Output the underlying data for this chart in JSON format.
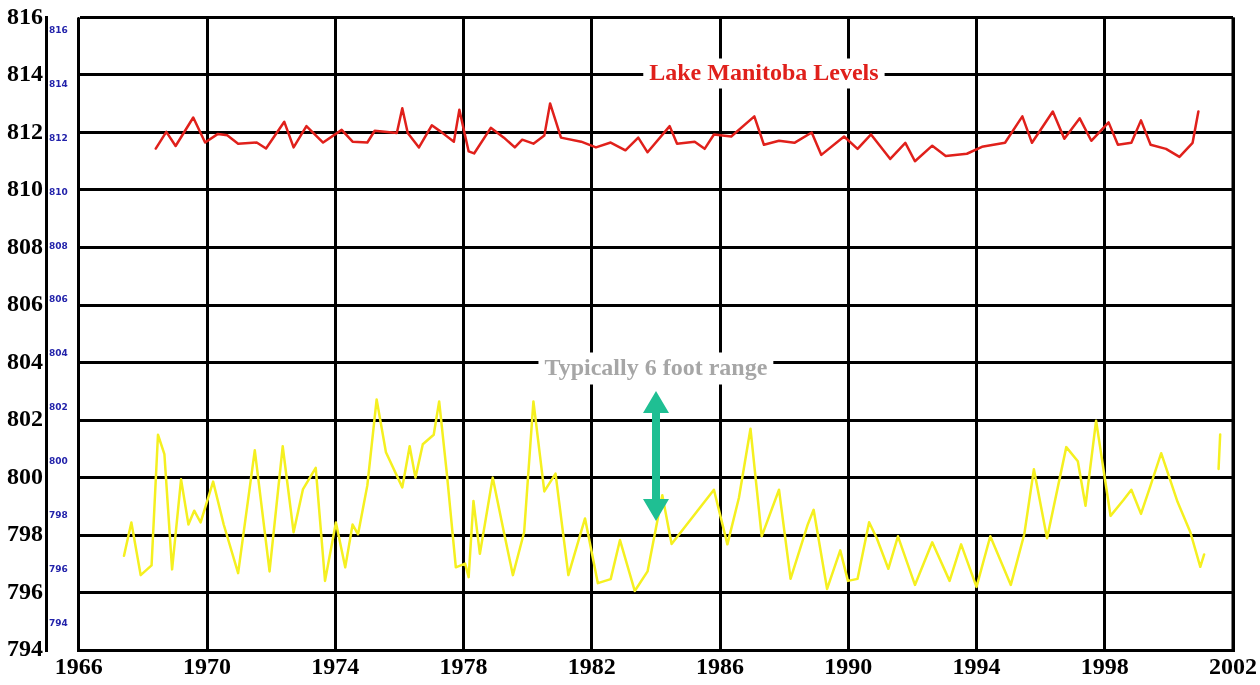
{
  "chart_data": {
    "type": "line",
    "xlim": [
      1966,
      2002
    ],
    "xticks": [
      1966,
      1970,
      1974,
      1978,
      1982,
      1986,
      1990,
      1994,
      1998,
      2002
    ],
    "ylim": [
      794,
      816
    ],
    "yticks": [
      794,
      796,
      798,
      800,
      802,
      804,
      806,
      808,
      810,
      812,
      814,
      816
    ],
    "y2lim": [
      793,
      816.5
    ],
    "y2ticks": [
      794,
      796,
      798,
      800,
      802,
      804,
      806,
      808,
      810,
      812,
      814,
      816
    ],
    "grid": true,
    "legend": false,
    "marker": "none",
    "annotations": [
      "Typically 6 foot range"
    ],
    "series": [
      {
        "name": "Lake Manitoba Levels",
        "color": "#e0201b",
        "x": [
          1968.4,
          1968.73,
          1969.02,
          1969.57,
          1969.94,
          1970.34,
          1970.63,
          1970.97,
          1971.55,
          1971.84,
          1972.41,
          1972.7,
          1973.1,
          1973.62,
          1974.2,
          1974.54,
          1975.0,
          1975.23,
          1975.92,
          1976.09,
          1976.26,
          1976.61,
          1977.01,
          1977.3,
          1977.7,
          1977.87,
          1978.16,
          1978.33,
          1978.85,
          1979.26,
          1979.6,
          1979.83,
          1980.18,
          1980.52,
          1980.7,
          1981.04,
          1981.67,
          1982.13,
          1982.59,
          1983.05,
          1983.45,
          1983.74,
          1984.43,
          1984.66,
          1985.21,
          1985.52,
          1985.81,
          1986.35,
          1987.07,
          1987.37,
          1987.84,
          1988.32,
          1988.86,
          1989.16,
          1989.87,
          1990.29,
          1990.71,
          1991.31,
          1991.78,
          1992.08,
          1992.62,
          1993.04,
          1993.7,
          1994.17,
          1994.89,
          1995.43,
          1995.73,
          1996.38,
          1996.74,
          1997.22,
          1997.58,
          1998.12,
          1998.41,
          1998.83,
          1999.13,
          1999.43,
          1999.91,
          2000.33,
          2000.74,
          2000.92
        ],
        "values": [
          811.44,
          812.02,
          811.53,
          812.52,
          811.65,
          811.95,
          811.9,
          811.61,
          811.65,
          811.44,
          812.37,
          811.48,
          812.22,
          811.65,
          812.09,
          811.68,
          811.65,
          812.06,
          811.98,
          812.84,
          811.98,
          811.48,
          812.25,
          812.02,
          811.68,
          812.79,
          811.34,
          811.27,
          812.16,
          811.82,
          811.48,
          811.75,
          811.61,
          811.89,
          813.01,
          811.82,
          811.68,
          811.48,
          811.65,
          811.38,
          811.82,
          811.31,
          812.22,
          811.61,
          811.68,
          811.43,
          811.93,
          811.86,
          812.56,
          811.57,
          811.71,
          811.64,
          812.0,
          811.22,
          811.86,
          811.43,
          811.93,
          811.08,
          811.64,
          811.0,
          811.54,
          811.18,
          811.26,
          811.5,
          811.64,
          812.56,
          811.64,
          812.73,
          811.78,
          812.49,
          811.71,
          812.35,
          811.57,
          811.64,
          812.42,
          811.57,
          811.43,
          811.15,
          811.64,
          812.73
        ]
      },
      {
        "color": "#f5f020",
        "x": [
          1967.41,
          1967.64,
          1967.93,
          1968.27,
          1968.47,
          1968.67,
          1968.91,
          1969.19,
          1969.42,
          1969.6,
          1969.8,
          1970.19,
          1970.52,
          1970.97,
          1971.49,
          1971.95,
          1972.36,
          1972.7,
          1972.99,
          1973.39,
          1973.68,
          1974.02,
          1974.31,
          1974.54,
          1974.71,
          1975.0,
          1975.29,
          1975.58,
          1976.09,
          1976.32,
          1976.5,
          1976.73,
          1977.07,
          1977.24,
          1977.48,
          1977.76,
          1978.05,
          1978.16,
          1978.31,
          1978.51,
          1978.91,
          1979.26,
          1979.54,
          1979.89,
          1980.18,
          1980.52,
          1980.87,
          1981.27,
          1981.79,
          1982.19,
          1982.59,
          1982.88,
          1983.34,
          1983.74,
          1984.2,
          1984.49,
          1985.81,
          1986.23,
          1986.59,
          1986.95,
          1987.3,
          1987.84,
          1988.2,
          1988.74,
          1988.92,
          1989.34,
          1989.75,
          1989.99,
          1990.29,
          1990.65,
          1990.89,
          1991.25,
          1991.55,
          1992.08,
          1992.62,
          1993.16,
          1993.52,
          1994.0,
          1994.43,
          1995.07,
          1995.49,
          1995.79,
          1996.2,
          1996.8,
          1997.16,
          1997.4,
          1997.73,
          1998.18,
          1998.59,
          1998.83,
          1999.13,
          1999.43,
          1999.76,
          2000.27,
          2000.67,
          2000.98,
          2001.1,
          2001.3,
          2001.55,
          2001.6
        ],
        "values": [
          797.28,
          798.44,
          796.61,
          796.95,
          801.49,
          800.82,
          796.81,
          799.94,
          798.37,
          798.85,
          798.44,
          799.86,
          798.37,
          796.68,
          800.95,
          796.74,
          801.09,
          798.1,
          799.59,
          800.34,
          796.41,
          798.44,
          796.88,
          798.37,
          798.03,
          799.73,
          802.72,
          800.88,
          799.66,
          801.09,
          800.0,
          801.16,
          801.49,
          802.65,
          800.14,
          796.88,
          797.01,
          796.54,
          799.19,
          797.35,
          800.0,
          798.1,
          796.61,
          798.1,
          802.65,
          799.52,
          800.14,
          796.61,
          798.58,
          796.33,
          796.47,
          797.83,
          796.06,
          796.74,
          799.39,
          797.69,
          799.58,
          797.68,
          799.3,
          801.7,
          797.96,
          799.58,
          796.48,
          798.38,
          798.88,
          796.13,
          797.47,
          796.41,
          796.48,
          798.45,
          797.89,
          796.83,
          797.96,
          796.27,
          797.75,
          796.41,
          797.68,
          796.2,
          797.96,
          796.27,
          798.03,
          800.29,
          797.89,
          801.06,
          800.57,
          799.02,
          801.98,
          798.67,
          799.23,
          799.58,
          798.74,
          799.73,
          800.85,
          799.16,
          798.1,
          796.9,
          797.33,
          null,
          800.3,
          801.5
        ]
      }
    ]
  }
}
